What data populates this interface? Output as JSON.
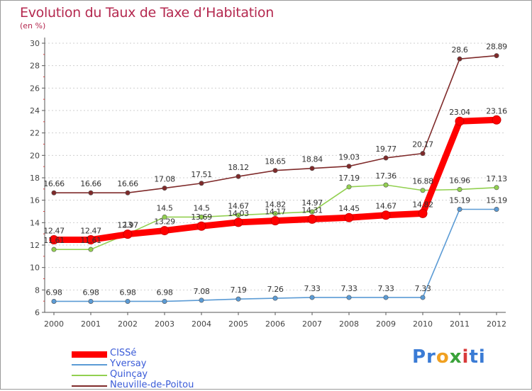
{
  "chart_data": {
    "type": "line",
    "title": "Evolution du Taux de Taxe d’Habitation",
    "subtitle": "(en %)",
    "x": [
      "2000",
      "2001",
      "2002",
      "2003",
      "2004",
      "2005",
      "2006",
      "2007",
      "2008",
      "2009",
      "2010",
      "2011",
      "2012"
    ],
    "ylim": [
      6,
      30
    ],
    "yticks": [
      6,
      8,
      10,
      12,
      14,
      16,
      18,
      20,
      22,
      24,
      26,
      28,
      30
    ],
    "grid": "horizontal",
    "legend_position": "bottom-left",
    "series": [
      {
        "name": "CISSé",
        "color": "#ff0000",
        "values": [
          12.47,
          12.47,
          12.97,
          13.29,
          13.69,
          14.03,
          14.17,
          14.31,
          14.45,
          14.67,
          14.82,
          23.04,
          23.16
        ],
        "labels": [
          "12.47",
          "12.47",
          "12.97",
          "13.29",
          "13.69",
          "14.03",
          "14.17",
          "14.31",
          "14.45",
          "14.67",
          "14.82",
          "23.04",
          "23.16"
        ]
      },
      {
        "name": "Yversay",
        "color": "#5b9bd5",
        "values": [
          6.98,
          6.98,
          6.98,
          6.98,
          7.08,
          7.19,
          7.26,
          7.33,
          7.33,
          7.33,
          7.33,
          15.19,
          15.19
        ],
        "labels": [
          "6.98",
          "6.98",
          "6.98",
          "6.98",
          "7.08",
          "7.19",
          "7.26",
          "7.33",
          "7.33",
          "7.33",
          "7.33",
          "15.19",
          "15.19"
        ]
      },
      {
        "name": "Quinçay",
        "color": "#92d050",
        "values": [
          11.61,
          11.61,
          13,
          14.5,
          14.5,
          14.67,
          14.82,
          14.97,
          17.19,
          17.36,
          16.88,
          16.96,
          17.13
        ],
        "labels": [
          "11.61",
          "11.61",
          "13",
          "14.5",
          "14.5",
          "14.67",
          "14.82",
          "14.97",
          "17.19",
          "17.36",
          "16.88",
          "16.96",
          "17.13"
        ]
      },
      {
        "name": "Neuville-de-Poitou",
        "color": "#7f2a2a",
        "values": [
          16.66,
          16.66,
          16.66,
          17.08,
          17.51,
          18.12,
          18.65,
          18.84,
          19.03,
          19.77,
          20.17,
          28.6,
          28.89
        ],
        "labels": [
          "16.66",
          "16.66",
          "16.66",
          "17.08",
          "17.51",
          "18.12",
          "18.65",
          "18.84",
          "19.03",
          "19.77",
          "20.17",
          "28.6",
          "28.89"
        ]
      }
    ]
  },
  "brand": {
    "parts": [
      "Pr",
      "o",
      "x",
      "i",
      "ti"
    ],
    "colors": [
      "#3a7bd5",
      "#f0a020",
      "#3aa23a",
      "#d83a3a",
      "#3a7bd5"
    ]
  }
}
